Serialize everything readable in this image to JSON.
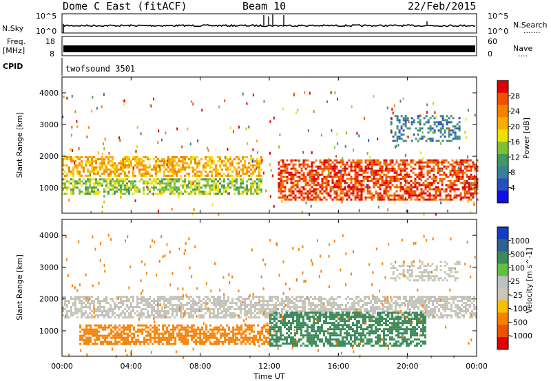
{
  "header": {
    "station": "Dome C East (fitACF)",
    "beam": "Beam 10",
    "date": "22/Feb/2015"
  },
  "nsky_panel": {
    "label": "N.Sky",
    "left_ticks": [
      "10^5",
      "10^0"
    ],
    "right_ticks": [
      "10^5",
      "10^0"
    ],
    "right_label": "N.Search",
    "right_dots": "......."
  },
  "freq_panel": {
    "label_top": "Freq.",
    "label_bottom": "[MHz]",
    "left_ticks": [
      "18",
      "8"
    ],
    "right_ticks": [
      "60",
      "0"
    ],
    "right_label": "Nave",
    "right_dots": "...."
  },
  "cpid_panel": {
    "label": "CPID",
    "program": "twofsound 3501"
  },
  "x_axis": {
    "label": "Time UT",
    "ticks": [
      "00:00",
      "04:00",
      "08:00",
      "12:00",
      "16:00",
      "20:00",
      "00:00"
    ]
  },
  "colors": {
    "power": [
      "#1010e0",
      "#2850c0",
      "#38809a",
      "#409a60",
      "#80c030",
      "#f0e000",
      "#f8b000",
      "#f88000",
      "#f05000",
      "#e00000"
    ],
    "velocity": [
      "#1040c0",
      "#306090",
      "#3a8a5a",
      "#60c040",
      "#c0c0c0",
      "#c8c8b4",
      "#f8c000",
      "#f88000",
      "#f05000",
      "#e00000"
    ]
  },
  "chart_data": [
    {
      "type": "heatmap",
      "title": "Power",
      "xlabel": "",
      "ylabel": "Slant Range [km]",
      "y_ticks": [
        "1000",
        "2000",
        "3000",
        "4000"
      ],
      "ylim": [
        200,
        4500
      ],
      "xlim": [
        "00:00",
        "24:00"
      ],
      "colorbar": {
        "label": "Power [dB]",
        "ticks": [
          "4",
          "8",
          "12",
          "16",
          "20",
          "24",
          "28"
        ],
        "range": [
          0,
          30
        ]
      },
      "bands": [
        {
          "range_km": [
            1400,
            2000
          ],
          "time_h": [
            0,
            11.5
          ],
          "value": 20
        },
        {
          "range_km": [
            800,
            1300
          ],
          "time_h": [
            0,
            11.5
          ],
          "value": 14
        },
        {
          "range_km": [
            600,
            1900
          ],
          "time_h": [
            12.5,
            24
          ],
          "value": 26
        },
        {
          "range_km": [
            2500,
            3300
          ],
          "time_h": [
            19,
            23
          ],
          "value": 8
        }
      ]
    },
    {
      "type": "heatmap",
      "title": "Velocity",
      "xlabel": "Time UT",
      "ylabel": "Slant Range [km]",
      "y_ticks": [
        "1000",
        "2000",
        "3000",
        "4000"
      ],
      "ylim": [
        200,
        4500
      ],
      "xlim": [
        "00:00",
        "24:00"
      ],
      "colorbar": {
        "label": "Velocity [m s^-1]",
        "ticks": [
          "1000",
          "500",
          "100",
          "25",
          "-25",
          "-100",
          "-500",
          "-1000"
        ]
      },
      "bands": [
        {
          "range_km": [
            600,
            1200
          ],
          "time_h": [
            1,
            12
          ],
          "value": -100
        },
        {
          "range_km": [
            1400,
            2100
          ],
          "time_h": [
            0,
            24
          ],
          "value": 0
        },
        {
          "range_km": [
            500,
            1600
          ],
          "time_h": [
            12,
            21
          ],
          "value": 100
        },
        {
          "range_km": [
            2600,
            3200
          ],
          "time_h": [
            19,
            23
          ],
          "value": 0
        }
      ]
    }
  ]
}
